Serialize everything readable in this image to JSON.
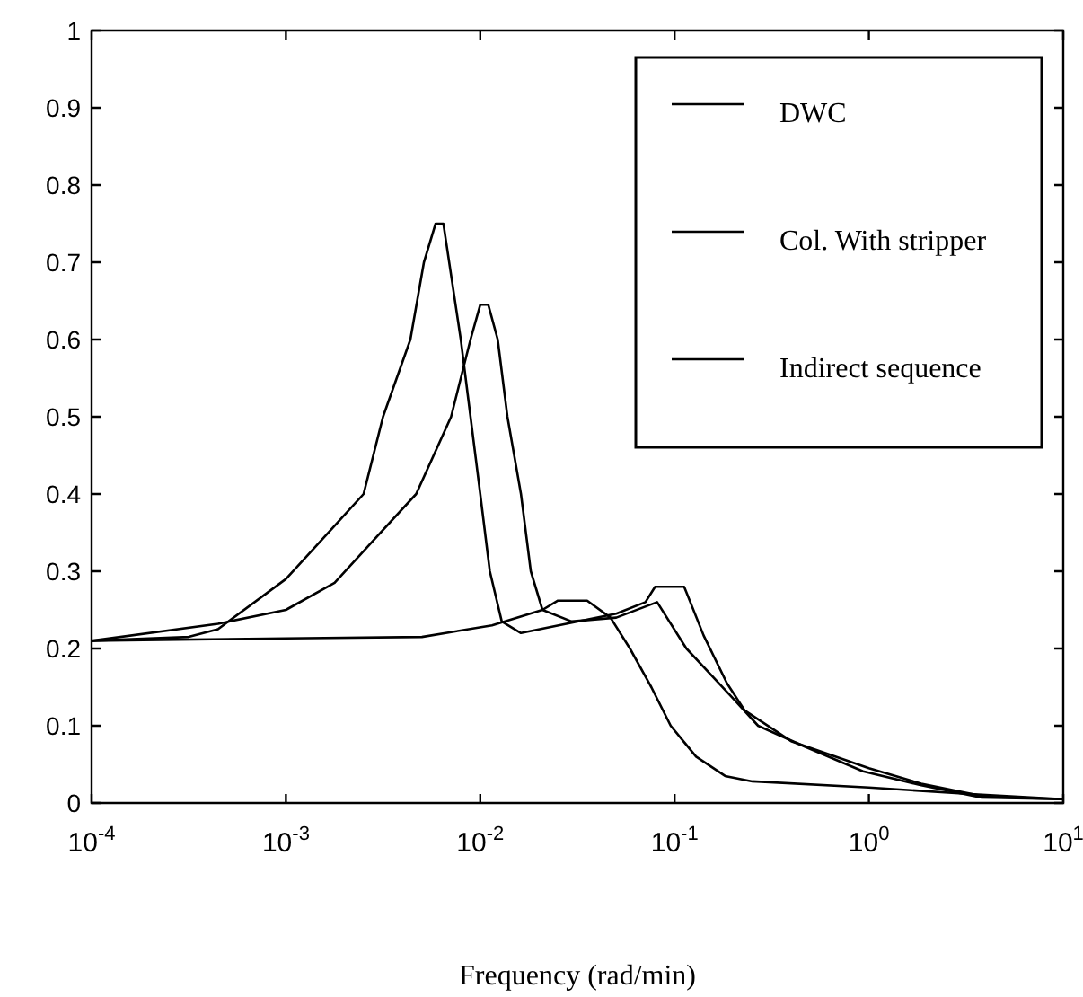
{
  "chart_data": {
    "type": "line",
    "xlabel": "Frequency (rad/min)",
    "log": "x",
    "xlim": [
      0.0001,
      10
    ],
    "ylim": [
      0,
      1
    ],
    "xticks": [
      {
        "value": 0.0001,
        "label": "10$^{-4}$"
      },
      {
        "value": 0.001,
        "label": "10$^{-3}$"
      },
      {
        "value": 0.01,
        "label": "10$^{-2}$"
      },
      {
        "value": 0.1,
        "label": "10$^{-1}$"
      },
      {
        "value": 1,
        "label": "10$^{0}$"
      },
      {
        "value": 10,
        "label": "10$^{1}$"
      }
    ],
    "yticks": [
      0,
      0.1,
      0.2,
      0.3,
      0.4,
      0.5,
      0.6,
      0.7,
      0.8,
      0.9,
      1
    ],
    "grid": false,
    "legend": "top right",
    "marker": "none",
    "line_style": "solid",
    "series": [
      {
        "name": "DWC",
        "color": "#000000",
        "x": [
          0.0001,
          0.000316,
          0.000447,
          0.001,
          0.00186,
          0.00251,
          0.00316,
          0.00437,
          0.00513,
          0.00589,
          0.00646,
          0.00794,
          0.00891,
          0.01,
          0.0112,
          0.0129,
          0.0162,
          0.0316,
          0.0501,
          0.0708,
          0.0794,
          0.112,
          0.141,
          0.186,
          0.229,
          0.398,
          1,
          1.86,
          3.98,
          10
        ],
        "values": [
          0.21,
          0.215,
          0.225,
          0.29,
          0.364,
          0.4,
          0.5,
          0.6,
          0.7,
          0.75,
          0.75,
          0.6,
          0.5,
          0.4,
          0.3,
          0.235,
          0.22,
          0.235,
          0.245,
          0.26,
          0.28,
          0.28,
          0.217,
          0.155,
          0.12,
          0.08,
          0.045,
          0.025,
          0.008,
          0.005
        ]
      },
      {
        "name": "Col. With stripper",
        "color": "#000000",
        "x": [
          0.0001,
          0.000447,
          0.001,
          0.00178,
          0.00282,
          0.00468,
          0.00708,
          0.00891,
          0.01,
          0.011,
          0.0123,
          0.0138,
          0.0162,
          0.0182,
          0.0209,
          0.0295,
          0.0501,
          0.0813,
          0.115,
          0.204,
          0.269,
          0.468,
          0.933,
          1.86,
          3.8,
          10
        ],
        "values": [
          0.21,
          0.232,
          0.25,
          0.285,
          0.34,
          0.4,
          0.5,
          0.6,
          0.645,
          0.645,
          0.6,
          0.5,
          0.4,
          0.3,
          0.25,
          0.235,
          0.24,
          0.26,
          0.2,
          0.133,
          0.1,
          0.073,
          0.041,
          0.023,
          0.007,
          0.005
        ]
      },
      {
        "name": "Indirect sequence",
        "color": "#000000",
        "x": [
          0.0001,
          0.001,
          0.00501,
          0.0115,
          0.0209,
          0.0251,
          0.0355,
          0.0468,
          0.0589,
          0.0759,
          0.0955,
          0.129,
          0.182,
          0.251,
          1,
          3.16,
          10
        ],
        "values": [
          0.21,
          0.213,
          0.215,
          0.23,
          0.25,
          0.262,
          0.262,
          0.24,
          0.2,
          0.15,
          0.1,
          0.06,
          0.035,
          0.028,
          0.02,
          0.012,
          0.005
        ]
      }
    ]
  }
}
